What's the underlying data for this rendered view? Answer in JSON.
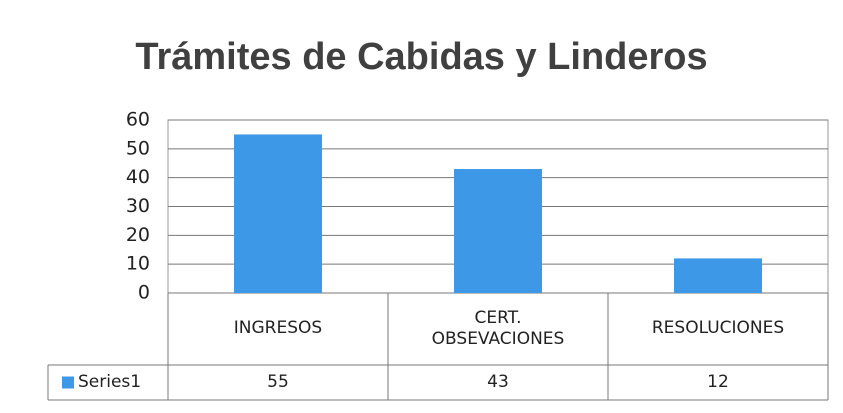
{
  "chart_data": {
    "type": "bar",
    "title": "Trámites de Cabidas y Linderos",
    "categories": [
      "INGRESOS",
      "CERT. OBSEVACIONES",
      "RESOLUCIONES"
    ],
    "series": [
      {
        "name": "Series1",
        "color": "#3d98e8",
        "values": [
          55,
          43,
          12
        ]
      }
    ],
    "ylim": [
      0,
      60
    ],
    "yticks": [
      0,
      10,
      20,
      30,
      40,
      50,
      60
    ],
    "grid": true,
    "data_table": true
  }
}
